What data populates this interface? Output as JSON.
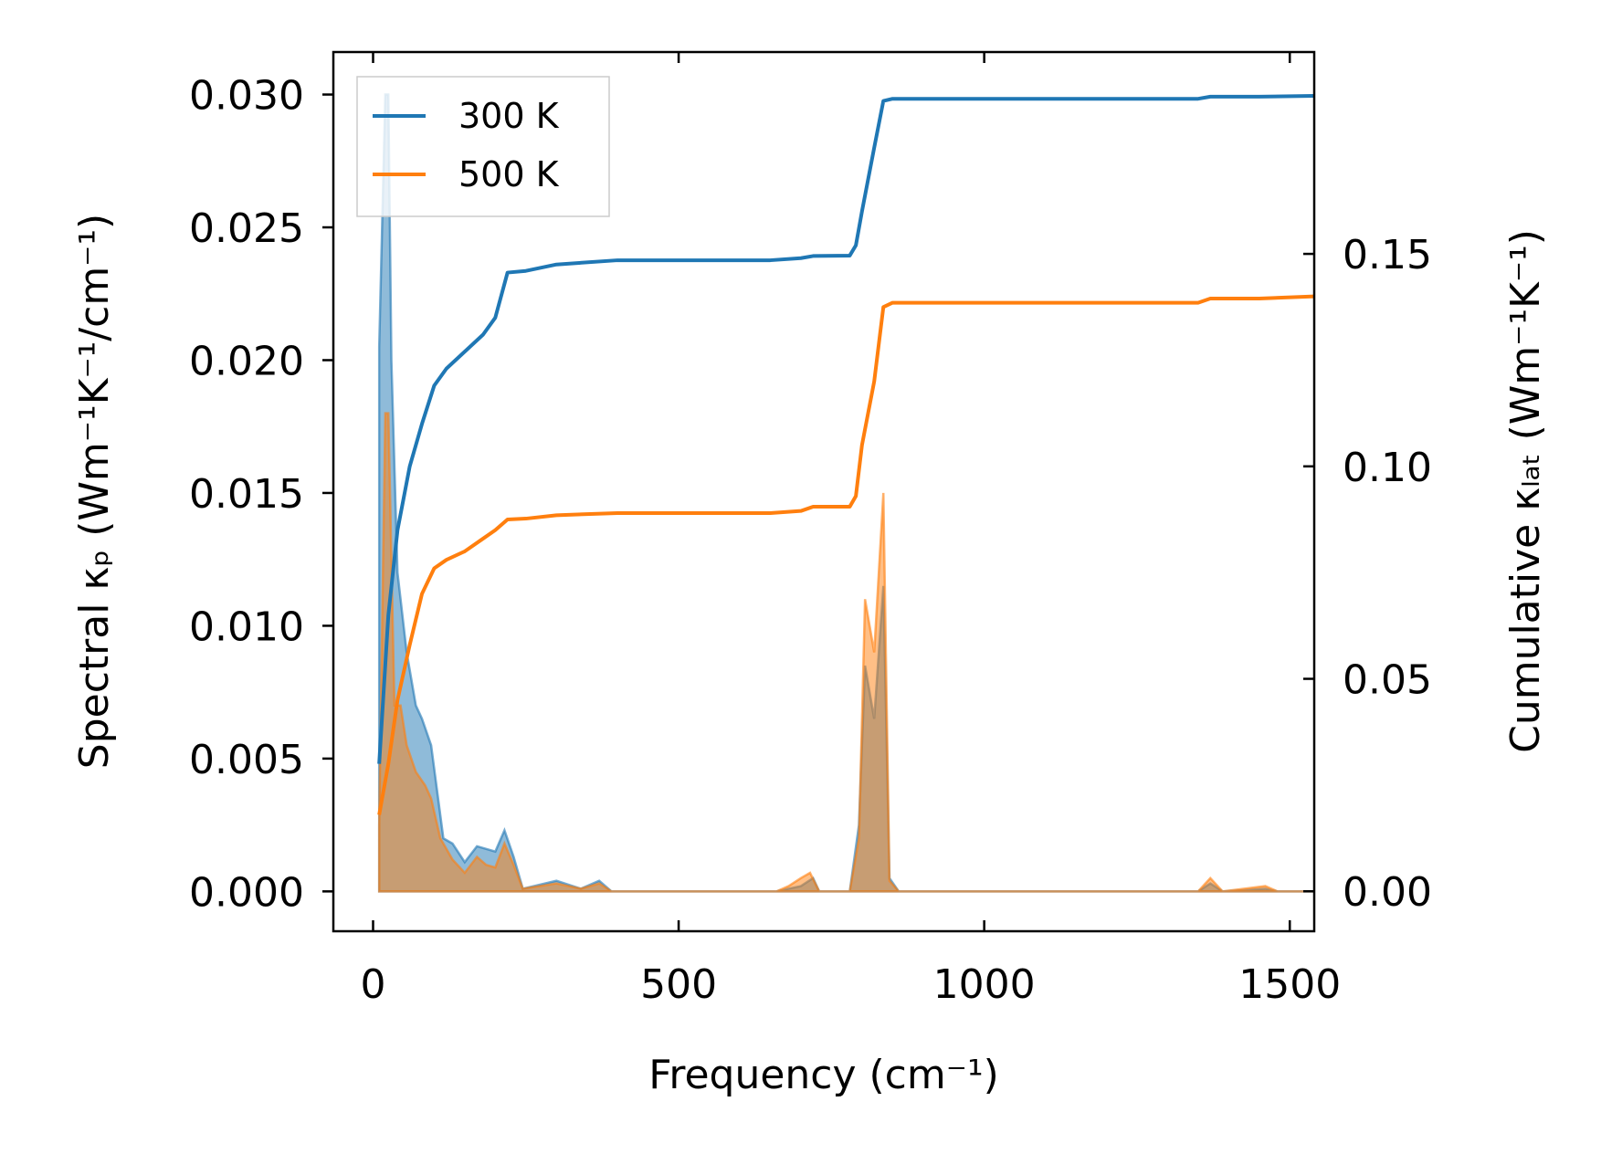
{
  "chart_data": {
    "type": "line",
    "xlabel": "Frequency (cm⁻¹)",
    "ylabel_left": "Spectral κₚ (Wm⁻¹K⁻¹/cm⁻¹)",
    "ylabel_right": "Cumulative κₗₐₜ (Wm⁻¹K⁻¹)",
    "xlim": [
      -65,
      1540
    ],
    "ylim_left": [
      -0.0015,
      0.0316
    ],
    "ylim_right": [
      -0.0094,
      0.1975
    ],
    "x_ticks": [
      0,
      500,
      1000,
      1500
    ],
    "y_ticks_left": [
      0.0,
      0.005,
      0.01,
      0.015,
      0.02,
      0.025,
      0.03
    ],
    "y_ticks_right": [
      0.0,
      0.05,
      0.1,
      0.15
    ],
    "y_tick_labels_left": [
      "0.000",
      "0.005",
      "0.010",
      "0.015",
      "0.020",
      "0.025",
      "0.030"
    ],
    "y_tick_labels_right": [
      "0.00",
      "0.05",
      "0.10",
      "0.15"
    ],
    "x_tick_labels": [
      "0",
      "500",
      "1000",
      "1500"
    ],
    "legend_position": "top-left",
    "grid": false,
    "series": [
      {
        "name": "300 K",
        "color": "#1f77b4",
        "cumulative": [
          [
            10,
            0.03
          ],
          [
            25,
            0.065
          ],
          [
            40,
            0.085
          ],
          [
            60,
            0.1
          ],
          [
            80,
            0.11
          ],
          [
            100,
            0.119
          ],
          [
            120,
            0.123
          ],
          [
            150,
            0.127
          ],
          [
            180,
            0.131
          ],
          [
            200,
            0.135
          ],
          [
            220,
            0.1456
          ],
          [
            250,
            0.146
          ],
          [
            300,
            0.1475
          ],
          [
            400,
            0.1485
          ],
          [
            650,
            0.1485
          ],
          [
            700,
            0.149
          ],
          [
            720,
            0.1495
          ],
          [
            780,
            0.1496
          ],
          [
            790,
            0.152
          ],
          [
            800,
            0.16
          ],
          [
            820,
            0.175
          ],
          [
            835,
            0.186
          ],
          [
            850,
            0.1865
          ],
          [
            1350,
            0.1865
          ],
          [
            1370,
            0.187
          ],
          [
            1450,
            0.187
          ],
          [
            1540,
            0.1872
          ]
        ],
        "spectral": [
          [
            10,
            0.0205
          ],
          [
            20,
            0.03
          ],
          [
            25,
            0.03
          ],
          [
            30,
            0.02
          ],
          [
            40,
            0.012
          ],
          [
            55,
            0.009
          ],
          [
            70,
            0.007
          ],
          [
            80,
            0.0065
          ],
          [
            95,
            0.0055
          ],
          [
            115,
            0.002
          ],
          [
            130,
            0.0018
          ],
          [
            150,
            0.0011
          ],
          [
            170,
            0.0017
          ],
          [
            185,
            0.0016
          ],
          [
            200,
            0.0015
          ],
          [
            215,
            0.0023
          ],
          [
            230,
            0.0013
          ],
          [
            245,
            0.0001
          ],
          [
            300,
            0.0004
          ],
          [
            340,
            0.0001
          ],
          [
            370,
            0.0004
          ],
          [
            390,
            0.0
          ],
          [
            660,
            0.0
          ],
          [
            680,
            0.0001
          ],
          [
            700,
            0.0002
          ],
          [
            720,
            0.0005
          ],
          [
            730,
            0.0
          ],
          [
            780,
            0.0
          ],
          [
            795,
            0.0025
          ],
          [
            805,
            0.0085
          ],
          [
            820,
            0.0065
          ],
          [
            835,
            0.0115
          ],
          [
            845,
            0.0005
          ],
          [
            860,
            0.0
          ],
          [
            1350,
            0.0
          ],
          [
            1370,
            0.0003
          ],
          [
            1390,
            0.0
          ],
          [
            1460,
            0.0001
          ],
          [
            1480,
            0.0
          ],
          [
            1540,
            0.0
          ]
        ]
      },
      {
        "name": "500 K",
        "color": "#ff7f0e",
        "cumulative": [
          [
            10,
            0.018
          ],
          [
            25,
            0.03
          ],
          [
            40,
            0.045
          ],
          [
            60,
            0.058
          ],
          [
            80,
            0.07
          ],
          [
            100,
            0.076
          ],
          [
            120,
            0.078
          ],
          [
            150,
            0.08
          ],
          [
            180,
            0.083
          ],
          [
            200,
            0.085
          ],
          [
            220,
            0.0875
          ],
          [
            250,
            0.0877
          ],
          [
            300,
            0.0885
          ],
          [
            400,
            0.089
          ],
          [
            650,
            0.089
          ],
          [
            700,
            0.0895
          ],
          [
            720,
            0.0905
          ],
          [
            780,
            0.0905
          ],
          [
            790,
            0.093
          ],
          [
            800,
            0.105
          ],
          [
            820,
            0.12
          ],
          [
            835,
            0.1375
          ],
          [
            850,
            0.1385
          ],
          [
            1350,
            0.1385
          ],
          [
            1370,
            0.1395
          ],
          [
            1450,
            0.1395
          ],
          [
            1540,
            0.14
          ]
        ],
        "spectral": [
          [
            10,
            0.0025
          ],
          [
            20,
            0.018
          ],
          [
            25,
            0.018
          ],
          [
            35,
            0.007
          ],
          [
            45,
            0.007
          ],
          [
            55,
            0.0055
          ],
          [
            70,
            0.0045
          ],
          [
            85,
            0.004
          ],
          [
            95,
            0.0035
          ],
          [
            110,
            0.002
          ],
          [
            130,
            0.0012
          ],
          [
            150,
            0.0007
          ],
          [
            170,
            0.0013
          ],
          [
            185,
            0.001
          ],
          [
            200,
            0.0009
          ],
          [
            215,
            0.0018
          ],
          [
            230,
            0.001
          ],
          [
            245,
            0.0001
          ],
          [
            300,
            0.0003
          ],
          [
            340,
            0.0001
          ],
          [
            370,
            0.0003
          ],
          [
            390,
            0.0
          ],
          [
            660,
            0.0
          ],
          [
            680,
            0.0002
          ],
          [
            700,
            0.0005
          ],
          [
            715,
            0.0007
          ],
          [
            730,
            0.0
          ],
          [
            780,
            0.0
          ],
          [
            795,
            0.002
          ],
          [
            805,
            0.011
          ],
          [
            820,
            0.009
          ],
          [
            835,
            0.015
          ],
          [
            845,
            0.0004
          ],
          [
            860,
            0.0
          ],
          [
            1350,
            0.0
          ],
          [
            1370,
            0.0005
          ],
          [
            1390,
            0.0
          ],
          [
            1460,
            0.0002
          ],
          [
            1480,
            0.0
          ],
          [
            1540,
            0.0
          ]
        ]
      }
    ]
  }
}
